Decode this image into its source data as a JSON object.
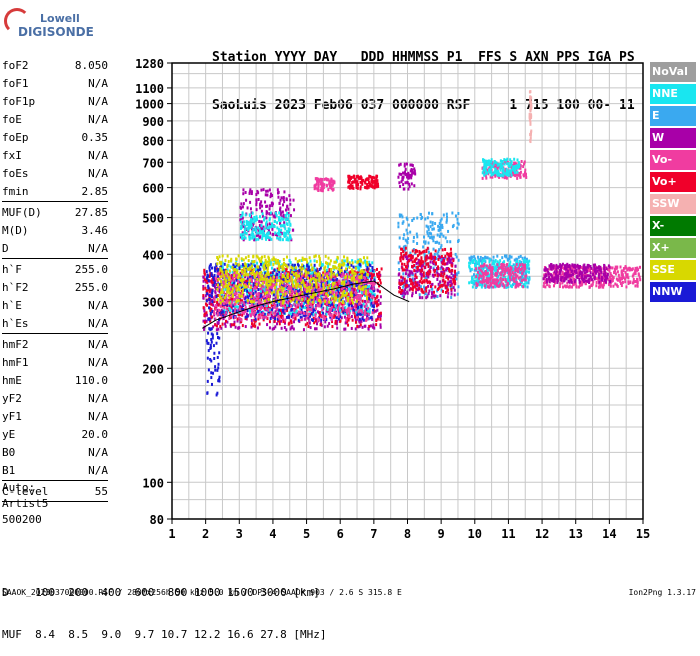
{
  "logo": {
    "line1": "Lowell",
    "line2": "DIGISONDE"
  },
  "header": {
    "row1": "Station YYYY DAY   DDD HHMMSS P1  FFS S AXN PPS IGA PS",
    "row2": "SaoLuis 2023 Feb06 037 000000 RSF     1 715 100 00- 11"
  },
  "params": {
    "group1": [
      {
        "label": "foF2",
        "value": "8.050"
      },
      {
        "label": "foF1",
        "value": "N/A"
      },
      {
        "label": "foF1p",
        "value": "N/A"
      },
      {
        "label": "foE",
        "value": "N/A"
      },
      {
        "label": "foEp",
        "value": "0.35"
      },
      {
        "label": "fxI",
        "value": "N/A"
      },
      {
        "label": "foEs",
        "value": "N/A"
      },
      {
        "label": "fmin",
        "value": "2.85"
      }
    ],
    "group2": [
      {
        "label": "MUF(D)",
        "value": "27.85"
      },
      {
        "label": "M(D)",
        "value": "3.46"
      },
      {
        "label": "D",
        "value": "N/A"
      }
    ],
    "group3": [
      {
        "label": "h`F",
        "value": "255.0"
      },
      {
        "label": "h`F2",
        "value": "255.0"
      },
      {
        "label": "h`E",
        "value": "N/A"
      },
      {
        "label": "h`Es",
        "value": "N/A"
      }
    ],
    "group4": [
      {
        "label": "hmF2",
        "value": "N/A"
      },
      {
        "label": "hmF1",
        "value": "N/A"
      },
      {
        "label": "hmE",
        "value": "110.0"
      },
      {
        "label": "yF2",
        "value": "N/A"
      },
      {
        "label": "yF1",
        "value": "N/A"
      },
      {
        "label": "yE",
        "value": "20.0"
      },
      {
        "label": "B0",
        "value": "N/A"
      },
      {
        "label": "B1",
        "value": "N/A"
      }
    ],
    "group5": [
      {
        "label": "C-level",
        "value": "55"
      }
    ]
  },
  "notes": {
    "line1": "Auto:",
    "line2": "Artist5",
    "line3": "500200"
  },
  "legend": [
    {
      "label": "NoVal",
      "color": "#9e9e9e"
    },
    {
      "label": "NNE",
      "color": "#19e6f0"
    },
    {
      "label": "E",
      "color": "#3aa9f0"
    },
    {
      "label": "W",
      "color": "#a800a8"
    },
    {
      "label": "Vo-",
      "color": "#f03ca0"
    },
    {
      "label": "Vo+",
      "color": "#f0002a"
    },
    {
      "label": "SSW",
      "color": "#f5b1b1"
    },
    {
      "label": "X-",
      "color": "#007a00"
    },
    {
      "label": "X+",
      "color": "#7ab84a"
    },
    {
      "label": "SSE",
      "color": "#d8d800"
    },
    {
      "label": "NNW",
      "color": "#1a1ad6"
    }
  ],
  "chart_data": {
    "type": "scatter",
    "x_label": "",
    "y_label": "",
    "xlim": [
      1,
      15
    ],
    "ylim": [
      80,
      1280
    ],
    "y_scale": "log",
    "x_ticks": [
      "1",
      "2",
      "3",
      "4",
      "5",
      "6",
      "7",
      "8",
      "9",
      "10",
      "11",
      "12",
      "13",
      "14",
      "15"
    ],
    "y_ticks": [
      80,
      100,
      200,
      300,
      400,
      500,
      600,
      700,
      800,
      900,
      1000,
      1100,
      1280
    ],
    "grid": true,
    "trace": {
      "x": [
        1.9,
        2.3,
        2.9,
        3.5,
        4.0,
        4.6,
        5.2,
        5.8,
        6.4,
        7.0,
        7.6,
        8.05
      ],
      "y": [
        255,
        268,
        280,
        292,
        300,
        308,
        316,
        324,
        334,
        340,
        312,
        300
      ]
    },
    "clusters": [
      {
        "x": [
          1.9,
          7.2
        ],
        "y": [
          255,
          360
        ],
        "color": "#a800a8"
      },
      {
        "x": [
          1.9,
          7.2
        ],
        "y": [
          260,
          370
        ],
        "color": "#f0002a"
      },
      {
        "x": [
          2.4,
          7.0
        ],
        "y": [
          280,
          390
        ],
        "color": "#19e6f0"
      },
      {
        "x": [
          2.0,
          7.0
        ],
        "y": [
          270,
          380
        ],
        "color": "#1a1ad6"
      },
      {
        "x": [
          2.2,
          7.0
        ],
        "y": [
          270,
          360
        ],
        "color": "#f03ca0"
      },
      {
        "x": [
          2.3,
          6.8
        ],
        "y": [
          300,
          400
        ],
        "color": "#d8d800"
      },
      {
        "x": [
          7.7,
          9.5
        ],
        "y": [
          310,
          520
        ],
        "color": "#3aa9f0"
      },
      {
        "x": [
          7.7,
          9.4
        ],
        "y": [
          310,
          400
        ],
        "color": "#a800a8"
      },
      {
        "x": [
          7.7,
          9.4
        ],
        "y": [
          320,
          420
        ],
        "color": "#f0002a"
      },
      {
        "x": [
          9.8,
          11.6
        ],
        "y": [
          330,
          400
        ],
        "color": "#3aa9f0"
      },
      {
        "x": [
          9.8,
          11.6
        ],
        "y": [
          330,
          390
        ],
        "color": "#19e6f0"
      },
      {
        "x": [
          10.0,
          11.5
        ],
        "y": [
          330,
          380
        ],
        "color": "#f03ca0"
      },
      {
        "x": [
          12.0,
          14.9
        ],
        "y": [
          330,
          375
        ],
        "color": "#f03ca0"
      },
      {
        "x": [
          12.0,
          14.0
        ],
        "y": [
          340,
          380
        ],
        "color": "#a800a8"
      },
      {
        "x": [
          3.0,
          4.6
        ],
        "y": [
          440,
          600
        ],
        "color": "#a800a8"
      },
      {
        "x": [
          3.0,
          4.5
        ],
        "y": [
          440,
          520
        ],
        "color": "#19e6f0"
      },
      {
        "x": [
          5.2,
          5.8
        ],
        "y": [
          590,
          640
        ],
        "color": "#f03ca0"
      },
      {
        "x": [
          6.2,
          7.1
        ],
        "y": [
          600,
          650
        ],
        "color": "#f0002a"
      },
      {
        "x": [
          7.7,
          8.2
        ],
        "y": [
          600,
          700
        ],
        "color": "#a800a8"
      },
      {
        "x": [
          10.2,
          11.5
        ],
        "y": [
          640,
          710
        ],
        "color": "#f03ca0"
      },
      {
        "x": [
          10.2,
          11.3
        ],
        "y": [
          650,
          720
        ],
        "color": "#19e6f0"
      },
      {
        "x": [
          11.6,
          11.65
        ],
        "y": [
          800,
          1110
        ],
        "color": "#f5b1b1"
      },
      {
        "x": [
          2.0,
          2.4
        ],
        "y": [
          170,
          260
        ],
        "color": "#1a1ad6"
      }
    ]
  },
  "muf_table": {
    "row1": "D    100  200  400  600  800 1000 1500 3000 [km]",
    "row2": "MUF  8.4  8.5  9.0  9.7 10.7 12.2 16.6 27.8 [MHz]"
  },
  "footer": "SAAOK_2023037000000.RSF / 280fx256h 50 kHz 5.0 km / DPS-4 SAAOK 903 / 2.6 S 315.8 E",
  "version": "Ion2Png 1.3.17"
}
